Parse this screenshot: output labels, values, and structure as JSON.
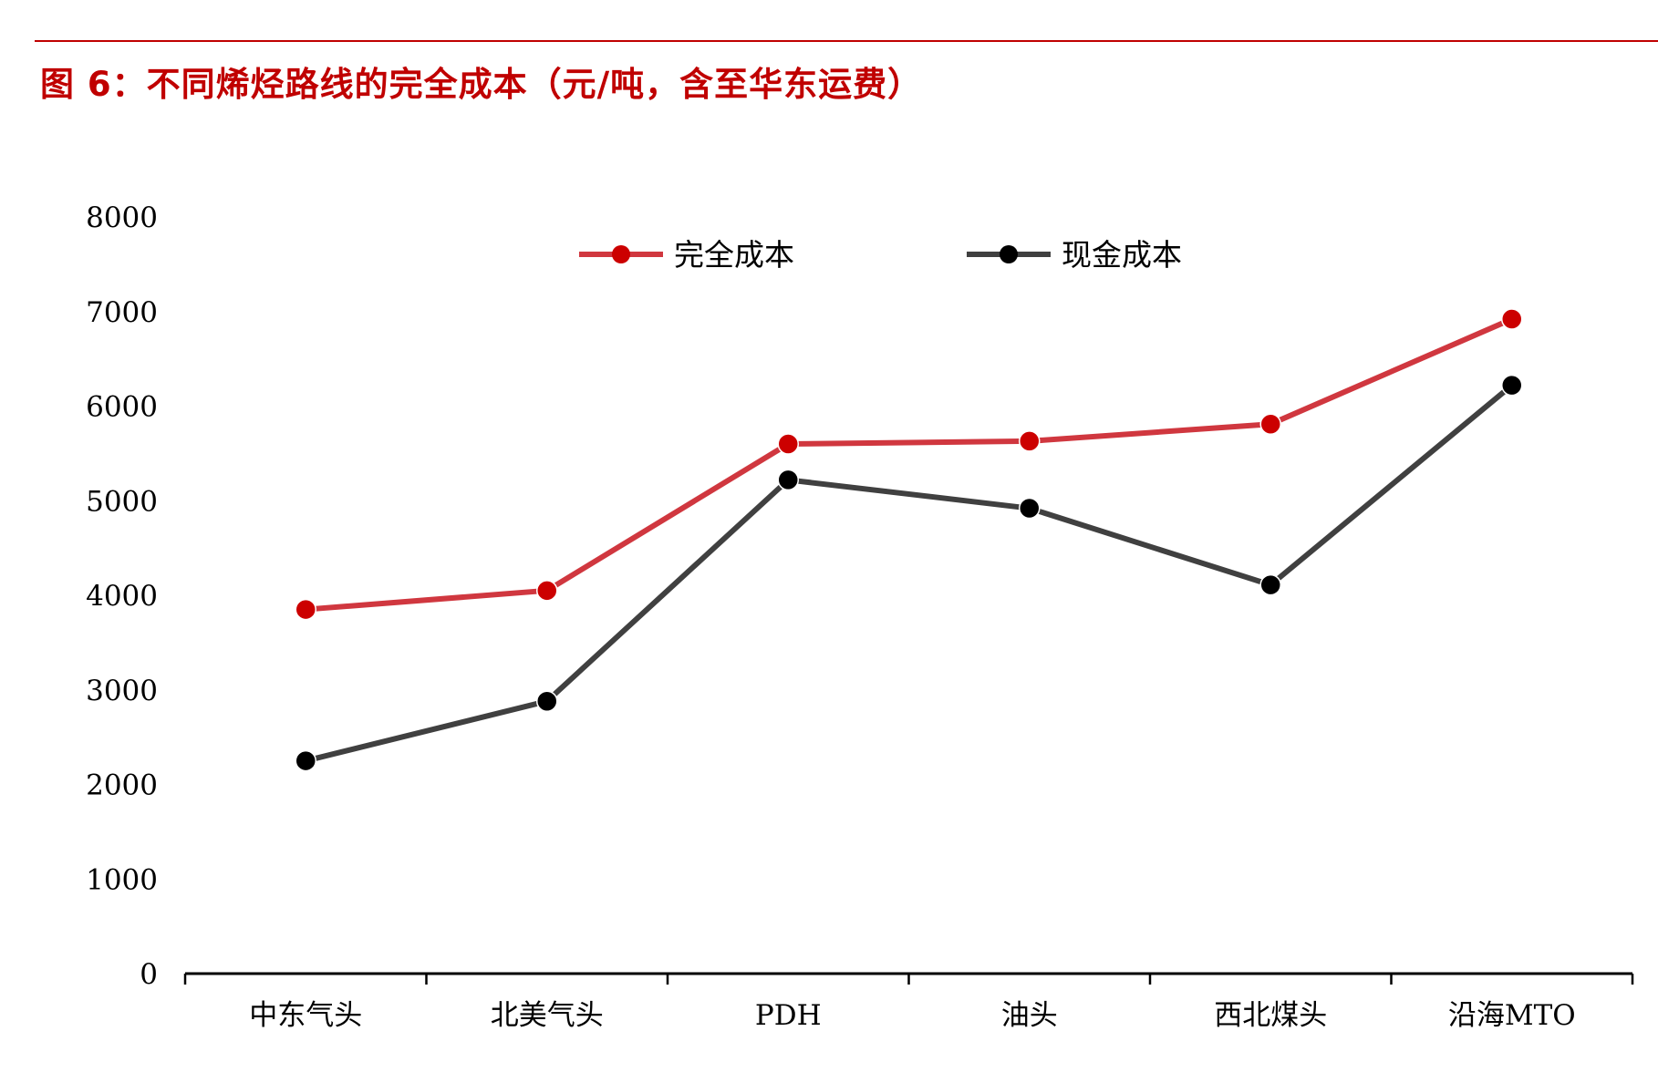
{
  "title": "图 6：不同烯烃路线的完全成本（元/吨，含至华东运费）",
  "colors": {
    "accent": "#c00000",
    "series_full_cost": "#d0373f",
    "series_full_cost_marker": "#cc0000",
    "series_cash_cost": "#404040",
    "series_cash_cost_marker": "#000000"
  },
  "chart_data": {
    "type": "line",
    "title": "图 6：不同烯烃路线的完全成本（元/吨，含至华东运费）",
    "xlabel": "",
    "ylabel": "",
    "categories": [
      "中东气头",
      "北美气头",
      "PDH",
      "油头",
      "西北煤头",
      "沿海MTO"
    ],
    "ylim": [
      0,
      8000
    ],
    "yticks": [
      0,
      1000,
      2000,
      3000,
      4000,
      5000,
      6000,
      7000,
      8000
    ],
    "grid": false,
    "legend_position": "top",
    "series": [
      {
        "name": "完全成本",
        "color": "#d0373f",
        "marker_color": "#cc0000",
        "values": [
          3850,
          4050,
          5600,
          5630,
          5810,
          6920
        ]
      },
      {
        "name": "现金成本",
        "color": "#404040",
        "marker_color": "#000000",
        "values": [
          2250,
          2880,
          5220,
          4920,
          4110,
          6220
        ]
      }
    ]
  }
}
